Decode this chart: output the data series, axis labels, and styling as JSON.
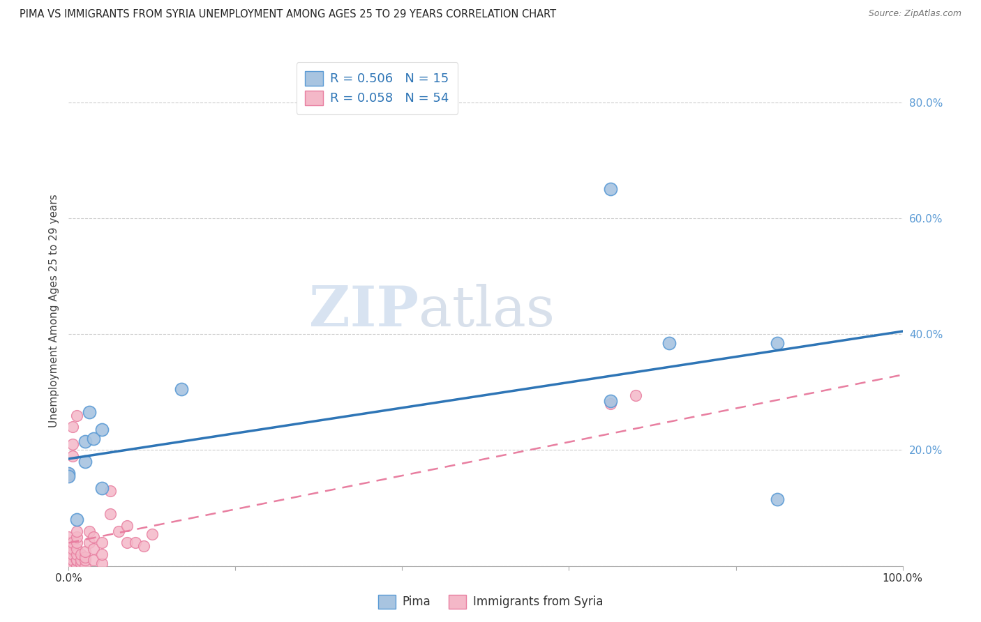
{
  "title": "PIMA VS IMMIGRANTS FROM SYRIA UNEMPLOYMENT AMONG AGES 25 TO 29 YEARS CORRELATION CHART",
  "source": "Source: ZipAtlas.com",
  "ylabel": "Unemployment Among Ages 25 to 29 years",
  "xlim": [
    0,
    1.0
  ],
  "ylim": [
    0,
    0.88
  ],
  "xticks": [
    0.0,
    0.2,
    0.4,
    0.6,
    0.8,
    1.0
  ],
  "xtick_labels": [
    "0.0%",
    "",
    "",
    "",
    "",
    "100.0%"
  ],
  "yticks": [
    0.0,
    0.2,
    0.4,
    0.6,
    0.8
  ],
  "ytick_labels": [
    "",
    "20.0%",
    "40.0%",
    "60.0%",
    "80.0%"
  ],
  "pima_color": "#a8c4e0",
  "pima_edge_color": "#5b9bd5",
  "syria_color": "#f4b8c8",
  "syria_edge_color": "#e87ea0",
  "blue_line_color": "#2e75b6",
  "pink_line_color": "#e87ea0",
  "legend_r_pima": "R = 0.506",
  "legend_n_pima": "N = 15",
  "legend_r_syria": "R = 0.058",
  "legend_n_syria": "N = 54",
  "legend_label_pima": "Pima",
  "legend_label_syria": "Immigrants from Syria",
  "watermark_zip": "ZIP",
  "watermark_atlas": "atlas",
  "blue_line_x": [
    0.0,
    1.0
  ],
  "blue_line_y": [
    0.185,
    0.405
  ],
  "pink_line_x": [
    0.0,
    1.0
  ],
  "pink_line_y": [
    0.04,
    0.33
  ],
  "pima_x": [
    0.0,
    0.01,
    0.02,
    0.02,
    0.025,
    0.03,
    0.04,
    0.04,
    0.135,
    0.65,
    0.65,
    0.72,
    0.85,
    0.85,
    0.0
  ],
  "pima_y": [
    0.16,
    0.08,
    0.18,
    0.215,
    0.265,
    0.22,
    0.235,
    0.135,
    0.305,
    0.65,
    0.285,
    0.385,
    0.385,
    0.115,
    0.155
  ],
  "syria_x": [
    0.0,
    0.0,
    0.0,
    0.0,
    0.0,
    0.0,
    0.0,
    0.0,
    0.0,
    0.0,
    0.005,
    0.005,
    0.005,
    0.005,
    0.005,
    0.01,
    0.01,
    0.01,
    0.01,
    0.01,
    0.01,
    0.01,
    0.01,
    0.015,
    0.015,
    0.015,
    0.02,
    0.02,
    0.02,
    0.02,
    0.025,
    0.025,
    0.03,
    0.03,
    0.03,
    0.04,
    0.04,
    0.04,
    0.05,
    0.05,
    0.06,
    0.07,
    0.07,
    0.08,
    0.09,
    0.1,
    0.65,
    0.68,
    0.0,
    0.0,
    0.005,
    0.005,
    0.005,
    0.01
  ],
  "syria_y": [
    0.0,
    0.0,
    0.0,
    0.0,
    0.01,
    0.01,
    0.02,
    0.03,
    0.04,
    0.05,
    0.0,
    0.01,
    0.02,
    0.03,
    0.04,
    0.0,
    0.01,
    0.01,
    0.02,
    0.03,
    0.04,
    0.05,
    0.06,
    0.005,
    0.01,
    0.02,
    0.0,
    0.01,
    0.015,
    0.025,
    0.04,
    0.06,
    0.01,
    0.03,
    0.05,
    0.005,
    0.02,
    0.04,
    0.09,
    0.13,
    0.06,
    0.04,
    0.07,
    0.04,
    0.035,
    0.055,
    0.28,
    0.295,
    0.155,
    0.16,
    0.19,
    0.21,
    0.24,
    0.26
  ]
}
